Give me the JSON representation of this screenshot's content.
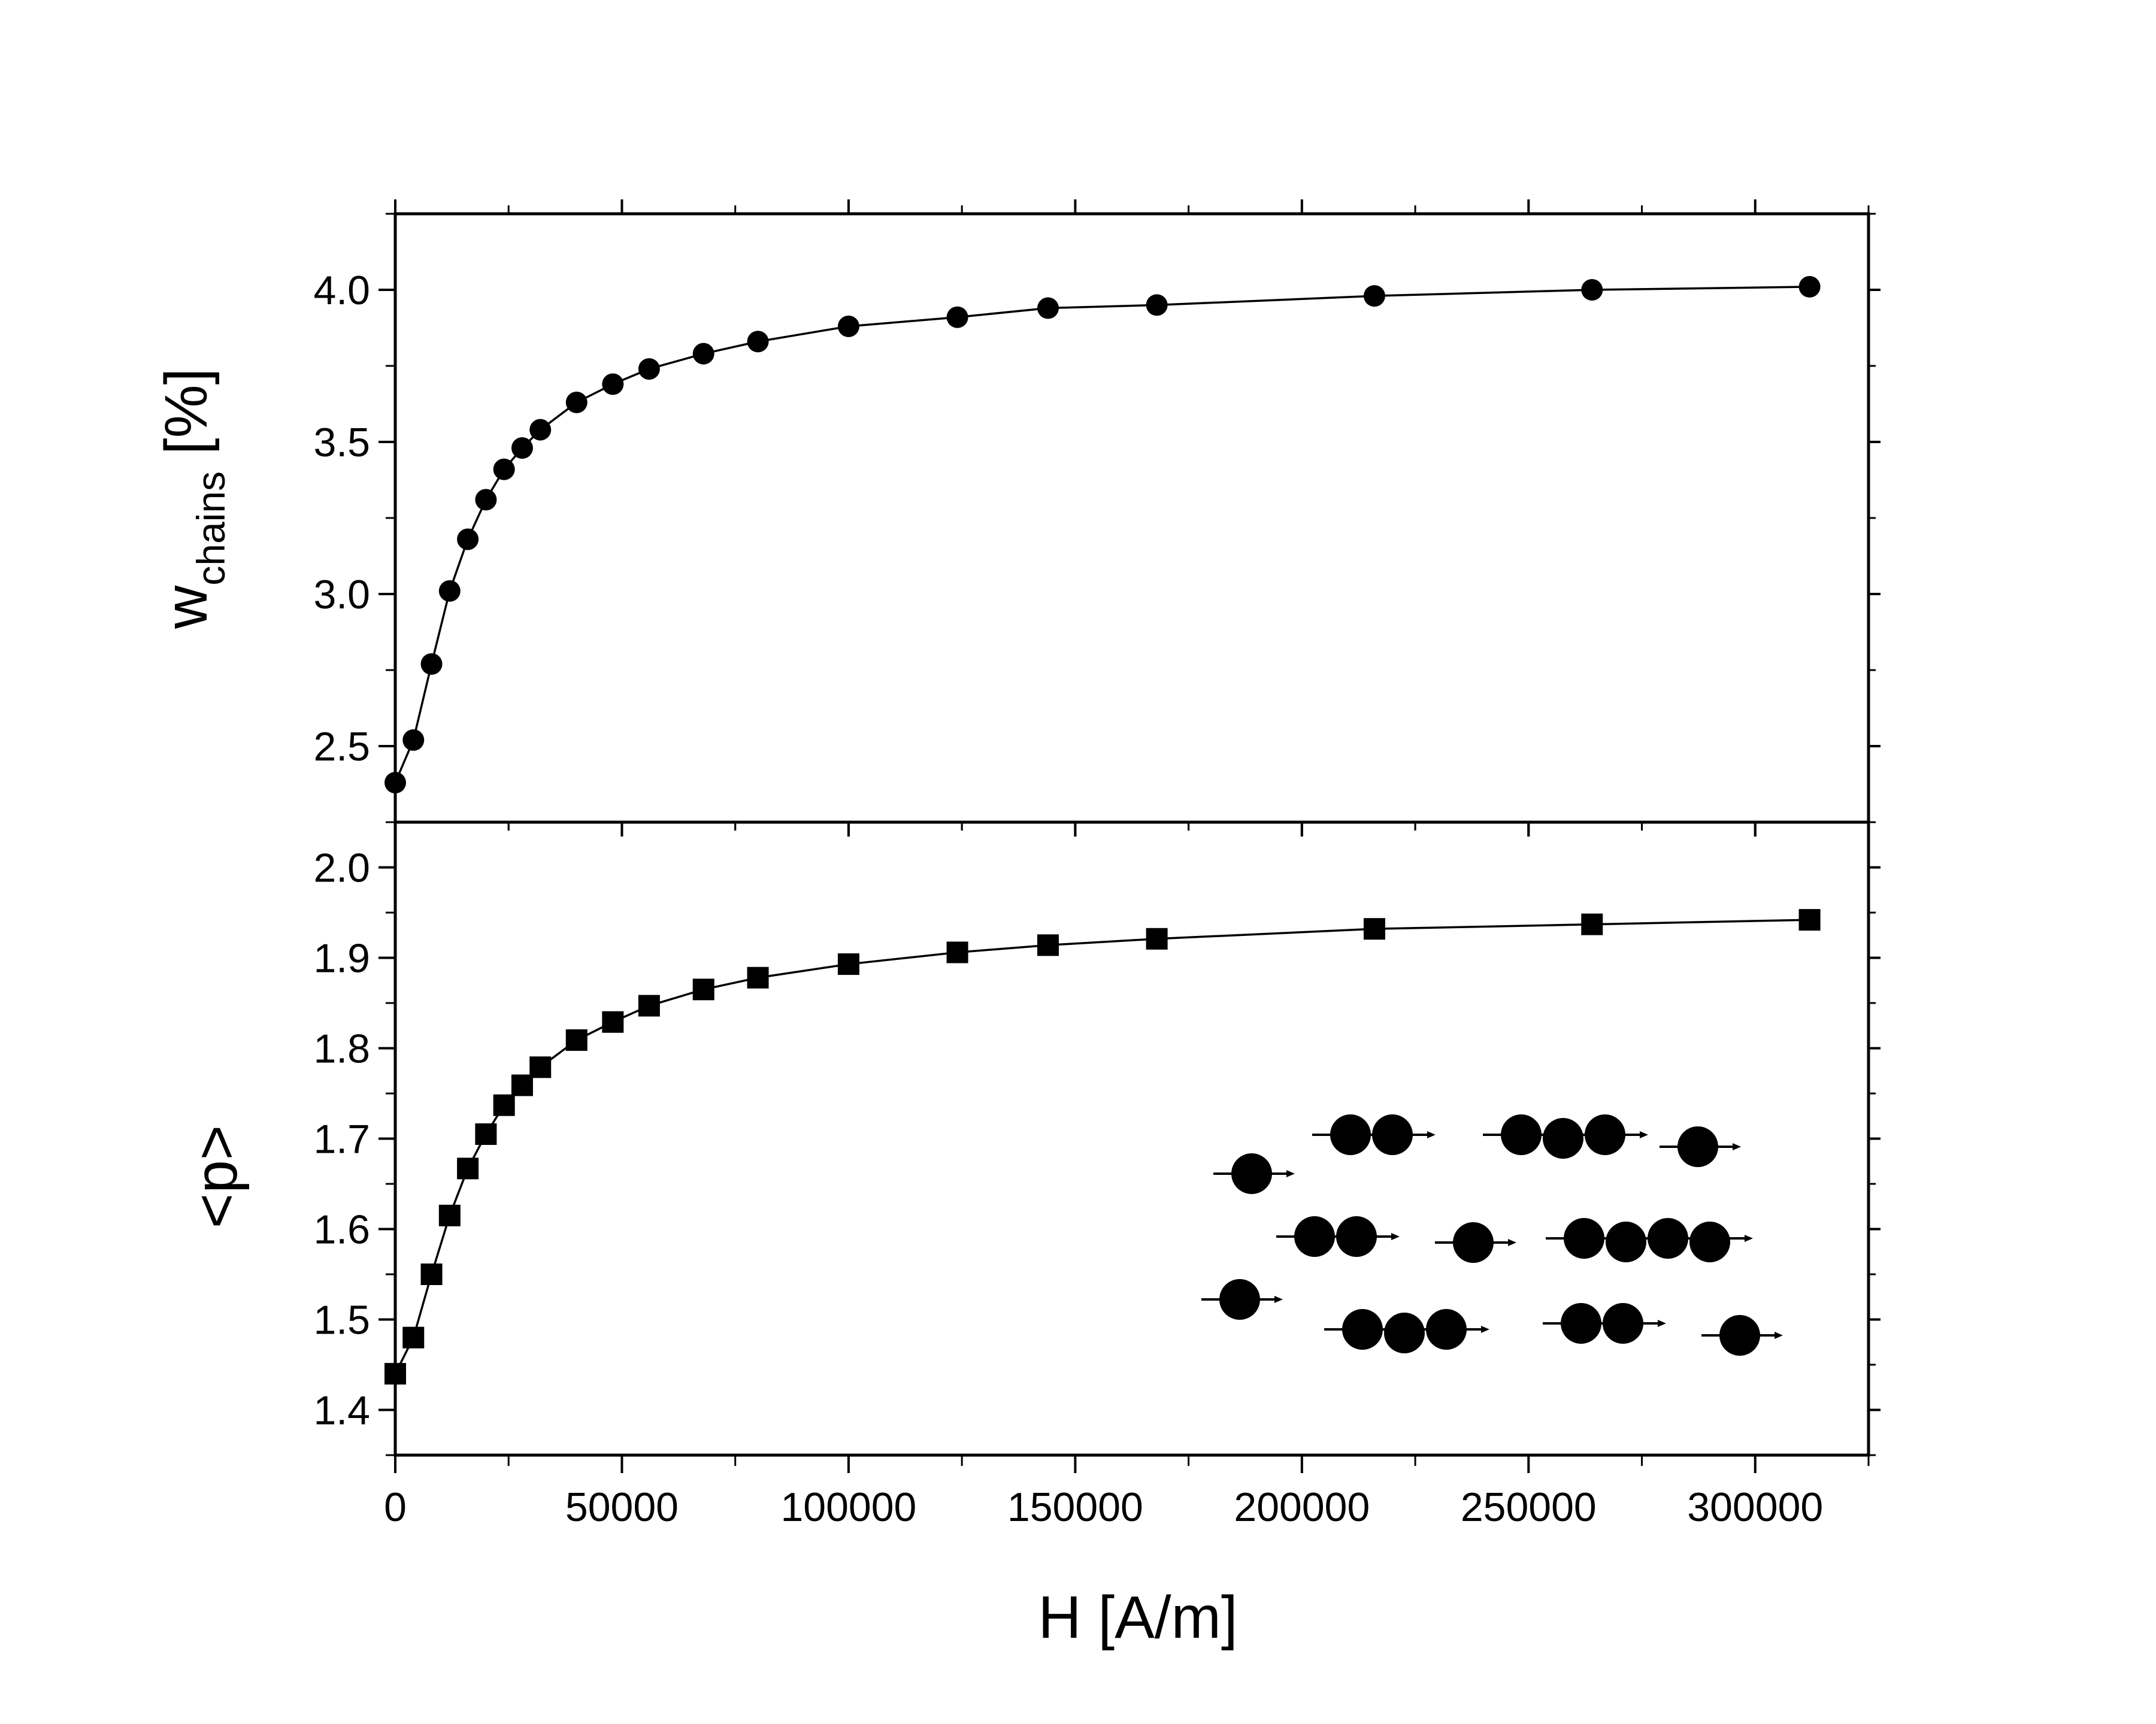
{
  "chart_data": [
    {
      "type": "line",
      "panel": "top",
      "marker": "circle",
      "ylabel": {
        "main": "w",
        "subscript": "chains",
        "suffix": " [%]"
      },
      "xlabel": "",
      "x": [
        0,
        4000,
        8000,
        12000,
        16000,
        20000,
        24000,
        28000,
        32000,
        40000,
        48000,
        56000,
        68000,
        80000,
        100000,
        124000,
        144000,
        168000,
        216000,
        264000,
        312000
      ],
      "series": [
        {
          "values": [
            2.38,
            2.52,
            2.77,
            3.01,
            3.18,
            3.31,
            3.41,
            3.48,
            3.54,
            3.63,
            3.69,
            3.74,
            3.79,
            3.83,
            3.88,
            3.91,
            3.94,
            3.95,
            3.98,
            4.0,
            4.01
          ]
        }
      ],
      "xlim": [
        0,
        325000
      ],
      "ylim": [
        2.25,
        4.25
      ],
      "yticks": [
        "2.5",
        "3.0",
        "3.5",
        "4.0"
      ],
      "grid": false
    },
    {
      "type": "line",
      "panel": "bottom",
      "marker": "square",
      "ylabel": "<p>",
      "xlabel": "H [A/m]",
      "x": [
        0,
        4000,
        8000,
        12000,
        16000,
        20000,
        24000,
        28000,
        32000,
        40000,
        48000,
        56000,
        68000,
        80000,
        100000,
        124000,
        144000,
        168000,
        216000,
        264000,
        312000
      ],
      "series": [
        {
          "values": [
            1.44,
            1.48,
            1.55,
            1.615,
            1.667,
            1.705,
            1.737,
            1.759,
            1.779,
            1.809,
            1.829,
            1.847,
            1.865,
            1.878,
            1.893,
            1.906,
            1.914,
            1.921,
            1.932,
            1.937,
            1.942
          ]
        }
      ],
      "xlim": [
        0,
        325000
      ],
      "ylim": [
        1.35,
        2.05
      ],
      "yticks": [
        "1.4",
        "1.5",
        "1.6",
        "1.7",
        "1.8",
        "1.9",
        "2.0"
      ],
      "xticks": [
        "0",
        "50000",
        "100000",
        "150000",
        "200000",
        "250000",
        "300000"
      ],
      "grid": false
    }
  ],
  "inset": {
    "description_icon": "particle-chains-icon"
  },
  "colors": {
    "marker": "#000000",
    "line": "#000000",
    "background": "#ffffff"
  }
}
